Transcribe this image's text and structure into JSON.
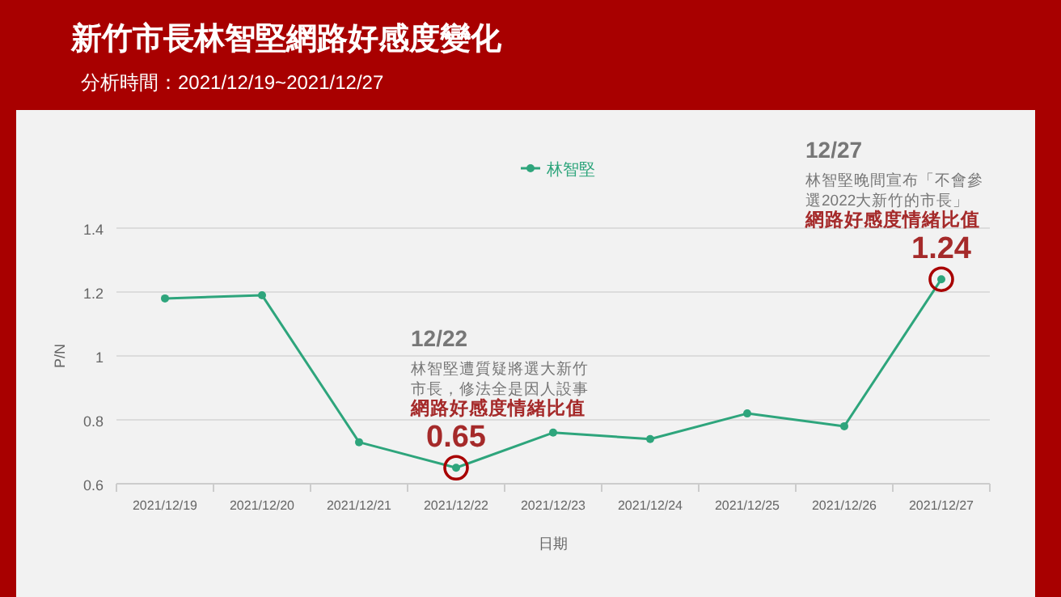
{
  "chart_data": {
    "type": "line",
    "title": "新竹市長林智堅網路好感度變化",
    "subtitle": "分析時間：2021/12/19~2021/12/27",
    "xlabel": "日期",
    "ylabel": "P/N",
    "categories": [
      "2021/12/19",
      "2021/12/20",
      "2021/12/21",
      "2021/12/22",
      "2021/12/23",
      "2021/12/24",
      "2021/12/25",
      "2021/12/26",
      "2021/12/27"
    ],
    "series": [
      {
        "name": "林智堅",
        "color": "#2ea57c",
        "values": [
          1.18,
          1.19,
          0.73,
          0.65,
          0.76,
          0.74,
          0.82,
          0.78,
          1.24
        ]
      }
    ],
    "ylim": [
      0.6,
      1.4
    ],
    "yticks": [
      0.6,
      0.8,
      {
        "value": 1,
        "label": "1"
      },
      1.2,
      1.4
    ],
    "grid": "y",
    "legend": "top",
    "marker": "circle",
    "line_style": "solid",
    "annotations": [
      "12/22",
      "林智堅遭質疑將選大新竹",
      "市長，修法全是因人設事",
      "網路好感度情緒比值",
      {
        "text": "0.65",
        "x": "2021/12/22",
        "y": 0.65
      },
      "12/27",
      "林智堅晚間宣布「不會參",
      "選2022大新竹的市長」",
      "網路好感度情緒比值",
      {
        "text": "1.24",
        "x": "2021/12/27",
        "y": 1.24
      }
    ]
  }
}
